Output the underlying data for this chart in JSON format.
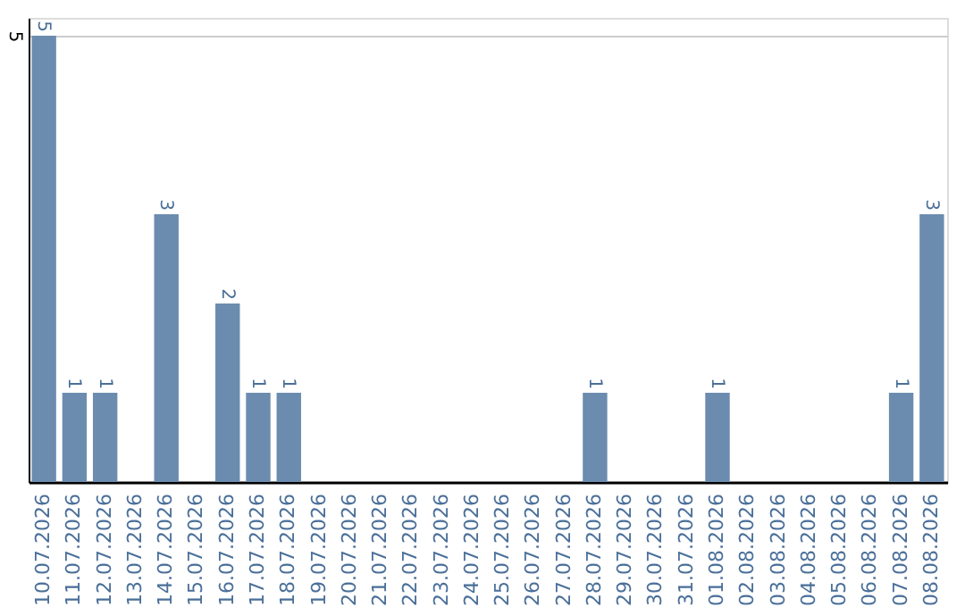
{
  "chart_data": {
    "type": "bar",
    "categories": [
      "10.07.2026",
      "11.07.2026",
      "12.07.2026",
      "13.07.2026",
      "14.07.2026",
      "15.07.2026",
      "16.07.2026",
      "17.07.2026",
      "18.07.2026",
      "19.07.2026",
      "20.07.2026",
      "21.07.2026",
      "22.07.2026",
      "23.07.2026",
      "24.07.2026",
      "25.07.2026",
      "26.07.2026",
      "27.07.2026",
      "28.07.2026",
      "29.07.2026",
      "30.07.2026",
      "31.07.2026",
      "01.08.2026",
      "02.08.2026",
      "03.08.2026",
      "04.08.2026",
      "05.08.2026",
      "06.08.2026",
      "07.08.2026",
      "08.08.2026"
    ],
    "values": [
      5,
      1,
      1,
      null,
      3,
      null,
      2,
      1,
      1,
      null,
      null,
      null,
      null,
      null,
      null,
      null,
      null,
      null,
      1,
      null,
      null,
      null,
      1,
      null,
      null,
      null,
      null,
      null,
      1,
      3
    ],
    "color": "#6b8cae",
    "ylim": [
      0,
      5.2
    ],
    "yticks": [
      5
    ],
    "grid": "y",
    "data_labels": true
  }
}
